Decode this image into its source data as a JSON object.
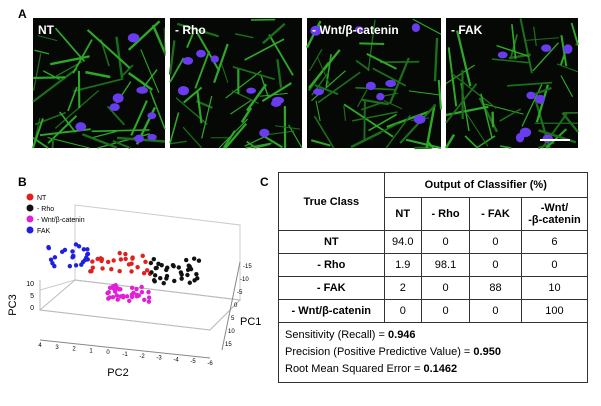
{
  "panel_a": {
    "label": "A",
    "images": [
      "NT",
      "- Rho",
      "- Wnt/β-catenin",
      "- FAK"
    ]
  },
  "panel_b": {
    "label": "B",
    "legend": [
      {
        "name": "NT",
        "color": "#e0201c"
      },
      {
        "name": "- Rho",
        "color": "#111111"
      },
      {
        "name": "- Wnt/β-catenin",
        "color": "#e020d8"
      },
      {
        "name": "FAK",
        "color": "#1f1fe0"
      }
    ],
    "axis_labels": {
      "x": "PC2",
      "y": "PC1",
      "z": "PC3"
    },
    "x_ticks": [
      "4",
      "3",
      "2",
      "1",
      "0",
      "-1",
      "-2",
      "-3",
      "-4",
      "-5",
      "-6"
    ],
    "z_ticks": [
      "10",
      "5",
      "0"
    ],
    "y_ticks": [
      "-15",
      "-10",
      "-5",
      "0",
      "5",
      "10",
      "15"
    ]
  },
  "panel_c": {
    "label": "C",
    "header": {
      "row_header": "True Class",
      "group": "Output of Classifier (%)",
      "columns": [
        "NT",
        "- Rho",
        "- FAK",
        "-Wnt/\n-β-catenin"
      ]
    },
    "rows": [
      [
        "NT",
        "94.0",
        "0",
        "0",
        "6"
      ],
      [
        "- Rho",
        "1.9",
        "98.1",
        "0",
        "0"
      ],
      [
        "- FAK",
        "2",
        "0",
        "88",
        "10"
      ],
      [
        "- Wnt/β-catenin",
        "0",
        "0",
        "0",
        "100"
      ]
    ],
    "metrics": [
      {
        "label": "Sensitivity (Recall) = ",
        "value": "0.946"
      },
      {
        "label": "Precision (Positive Predictive Value) = ",
        "value": "0.950"
      },
      {
        "label": "Root Mean Squared Error = ",
        "value": "0.1462"
      }
    ]
  }
}
